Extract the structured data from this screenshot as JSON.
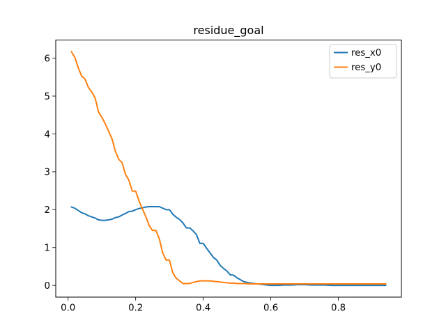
{
  "chart_data": {
    "type": "line",
    "title": "residue_goal",
    "xlabel": "",
    "ylabel": "",
    "xlim": [
      -0.0365,
      0.9865
    ],
    "ylim": [
      -0.309,
      6.48
    ],
    "xticks": [
      0.0,
      0.2,
      0.4,
      0.6,
      0.8
    ],
    "xtick_labels": [
      "0.0",
      "0.2",
      "0.4",
      "0.6",
      "0.8"
    ],
    "yticks": [
      0,
      1,
      2,
      3,
      4,
      5,
      6
    ],
    "ytick_labels": [
      "0",
      "1",
      "2",
      "3",
      "4",
      "5",
      "6"
    ],
    "grid": false,
    "legend_position": "top-right",
    "series": [
      {
        "name": "res_x0",
        "color": "#1f77b4",
        "x": [
          0.01,
          0.02,
          0.03,
          0.04,
          0.05,
          0.06,
          0.07,
          0.08,
          0.09,
          0.1,
          0.11,
          0.12,
          0.13,
          0.14,
          0.15,
          0.16,
          0.17,
          0.18,
          0.19,
          0.2,
          0.21,
          0.22,
          0.23,
          0.24,
          0.25,
          0.26,
          0.27,
          0.28,
          0.29,
          0.3,
          0.31,
          0.32,
          0.33,
          0.34,
          0.35,
          0.36,
          0.37,
          0.38,
          0.39,
          0.4,
          0.41,
          0.42,
          0.43,
          0.44,
          0.45,
          0.46,
          0.47,
          0.48,
          0.49,
          0.5,
          0.51,
          0.52,
          0.53,
          0.54,
          0.55,
          0.56,
          0.57,
          0.58,
          0.59,
          0.6,
          0.62,
          0.64,
          0.66,
          0.68,
          0.7,
          0.72,
          0.74,
          0.76,
          0.78,
          0.8,
          0.82,
          0.84,
          0.86,
          0.88,
          0.9,
          0.92,
          0.94
        ],
        "y": [
          2.07,
          2.04,
          1.98,
          1.92,
          1.89,
          1.84,
          1.81,
          1.78,
          1.73,
          1.72,
          1.72,
          1.73,
          1.75,
          1.79,
          1.81,
          1.86,
          1.9,
          1.95,
          1.96,
          2.0,
          2.03,
          2.05,
          2.07,
          2.08,
          2.08,
          2.08,
          2.08,
          2.04,
          2.0,
          2.0,
          1.88,
          1.8,
          1.74,
          1.65,
          1.52,
          1.52,
          1.44,
          1.34,
          1.11,
          1.11,
          0.98,
          0.86,
          0.74,
          0.67,
          0.53,
          0.45,
          0.38,
          0.28,
          0.27,
          0.2,
          0.15,
          0.1,
          0.08,
          0.06,
          0.05,
          0.04,
          0.03,
          0.02,
          0.01,
          0.0,
          0.0,
          0.01,
          0.01,
          0.02,
          0.02,
          0.01,
          0.01,
          0.01,
          0.0,
          0.0,
          0.0,
          0.0,
          0.0,
          0.0,
          0.0,
          0.0,
          0.0
        ]
      },
      {
        "name": "res_y0",
        "color": "#ff7f0e",
        "x": [
          0.01,
          0.02,
          0.03,
          0.04,
          0.05,
          0.06,
          0.07,
          0.08,
          0.09,
          0.1,
          0.11,
          0.12,
          0.13,
          0.14,
          0.15,
          0.16,
          0.17,
          0.18,
          0.19,
          0.2,
          0.21,
          0.22,
          0.23,
          0.24,
          0.25,
          0.26,
          0.27,
          0.28,
          0.29,
          0.3,
          0.31,
          0.32,
          0.33,
          0.34,
          0.35,
          0.36,
          0.37,
          0.38,
          0.39,
          0.4,
          0.41,
          0.42,
          0.43,
          0.44,
          0.45,
          0.46,
          0.47,
          0.48,
          0.49,
          0.5,
          0.52,
          0.54,
          0.56,
          0.58,
          0.6,
          0.62,
          0.64,
          0.66,
          0.68,
          0.7,
          0.72,
          0.74,
          0.76,
          0.78,
          0.8,
          0.82,
          0.84,
          0.86,
          0.88,
          0.9,
          0.92,
          0.94
        ],
        "y": [
          6.17,
          6.02,
          5.75,
          5.53,
          5.45,
          5.23,
          5.11,
          4.95,
          4.58,
          4.44,
          4.27,
          4.07,
          3.87,
          3.54,
          3.33,
          3.24,
          2.93,
          2.78,
          2.49,
          2.49,
          2.23,
          2.02,
          1.82,
          1.58,
          1.45,
          1.45,
          1.23,
          0.86,
          0.67,
          0.67,
          0.33,
          0.19,
          0.12,
          0.05,
          0.05,
          0.05,
          0.08,
          0.1,
          0.12,
          0.12,
          0.12,
          0.12,
          0.11,
          0.1,
          0.09,
          0.08,
          0.07,
          0.06,
          0.06,
          0.05,
          0.05,
          0.04,
          0.04,
          0.04,
          0.04,
          0.04,
          0.04,
          0.04,
          0.04,
          0.04,
          0.04,
          0.04,
          0.04,
          0.04,
          0.04,
          0.04,
          0.04,
          0.04,
          0.04,
          0.04,
          0.04,
          0.04
        ]
      }
    ]
  }
}
